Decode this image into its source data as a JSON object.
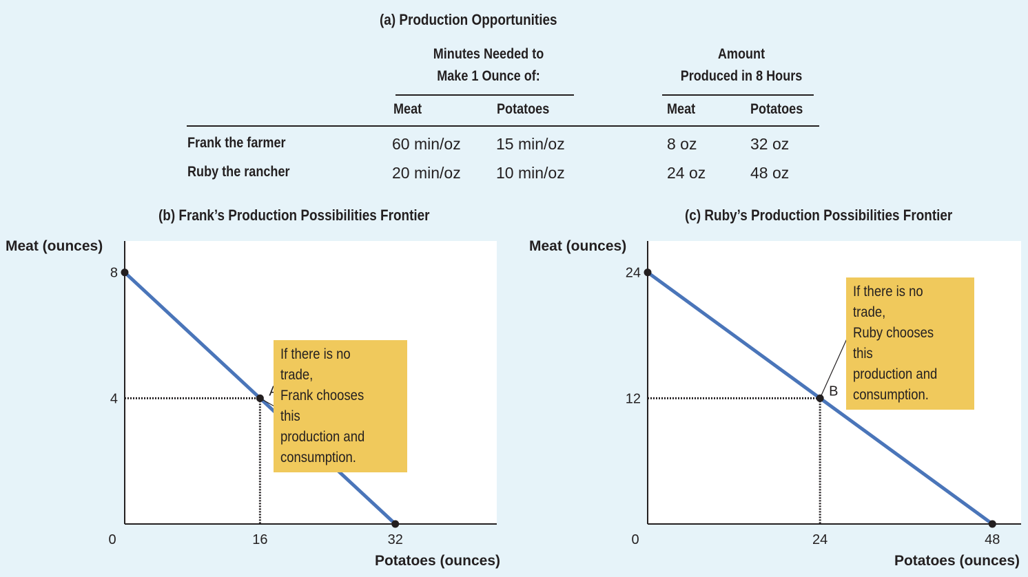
{
  "table": {
    "title": "(a) Production Opportunities",
    "group1": {
      "line1": "Minutes Needed to",
      "line2": "Make 1 Ounce of:"
    },
    "group2": {
      "line1": "Amount",
      "line2": "Produced in 8 Hours"
    },
    "columns": [
      "Meat",
      "Potatoes",
      "Meat",
      "Potatoes"
    ],
    "rows": [
      {
        "label": "Frank the farmer",
        "cells": [
          "60 min/oz",
          "15 min/oz",
          "8 oz",
          "32 oz"
        ]
      },
      {
        "label": "Ruby the rancher",
        "cells": [
          "20 min/oz",
          "10 min/oz",
          "24 oz",
          "48 oz"
        ]
      }
    ]
  },
  "colors": {
    "line": "#4a75b9",
    "callout": "#f0c95c",
    "background": "#e6f3f9",
    "plot": "#ffffff"
  },
  "chart_data": [
    {
      "type": "line",
      "title": "(b) Frank’s Production Possibilities Frontier",
      "xlabel": "Potatoes (ounces)",
      "ylabel": "Meat (ounces)",
      "xlim": [
        0,
        44
      ],
      "ylim": [
        0,
        9
      ],
      "xticks": [
        16,
        32
      ],
      "yticks": [
        4,
        8
      ],
      "origin_label": "0",
      "series": [
        {
          "x": [
            0,
            32
          ],
          "y": [
            8,
            0
          ]
        }
      ],
      "point": {
        "label": "A",
        "x": 16,
        "y": 4
      },
      "annotation": "If there is no trade,\nFrank chooses this\nproduction and\nconsumption."
    },
    {
      "type": "line",
      "title": "(c) Ruby’s Production Possibilities Frontier",
      "xlabel": "Potatoes (ounces)",
      "ylabel": "Meat (ounces)",
      "xlim": [
        0,
        52
      ],
      "ylim": [
        0,
        27
      ],
      "xticks": [
        24,
        48
      ],
      "yticks": [
        12,
        24
      ],
      "origin_label": "0",
      "series": [
        {
          "x": [
            0,
            48
          ],
          "y": [
            24,
            0
          ]
        }
      ],
      "point": {
        "label": "B",
        "x": 24,
        "y": 12
      },
      "annotation": "If there is no trade,\nRuby chooses this\nproduction and\nconsumption."
    }
  ]
}
